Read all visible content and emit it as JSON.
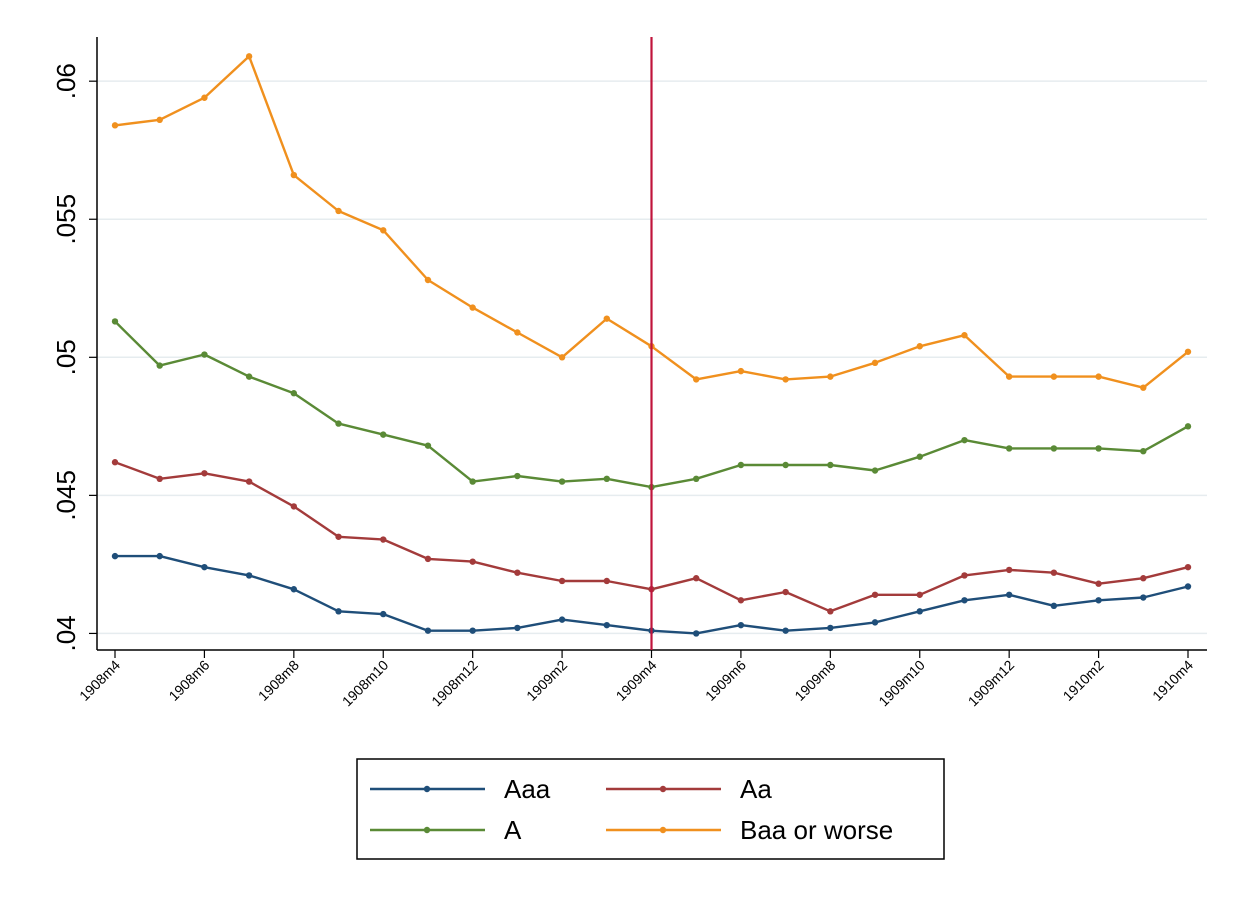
{
  "chart_data": {
    "type": "line",
    "title": "",
    "xlabel": "",
    "ylabel": "",
    "x": [
      "1908m4",
      "1908m5",
      "1908m6",
      "1908m7",
      "1908m8",
      "1908m9",
      "1908m10",
      "1908m11",
      "1908m12",
      "1909m1",
      "1909m2",
      "1909m3",
      "1909m4",
      "1909m5",
      "1909m6",
      "1909m7",
      "1909m8",
      "1909m9",
      "1909m10",
      "1909m11",
      "1909m12",
      "1910m1",
      "1910m2",
      "1910m3",
      "1910m4"
    ],
    "x_tick_labels": [
      "1908m4",
      "1908m6",
      "1908m8",
      "1908m10",
      "1908m12",
      "1909m2",
      "1909m4",
      "1909m6",
      "1909m8",
      "1909m10",
      "1909m12",
      "1910m2",
      "1910m4"
    ],
    "y_tick_values": [
      0.04,
      0.045,
      0.05,
      0.055,
      0.06
    ],
    "y_tick_labels": [
      ".04",
      ".045",
      ".05",
      ".055",
      ".06"
    ],
    "ylim": [
      0.0394,
      0.0616
    ],
    "grid": true,
    "vertical_reference_line": {
      "x": "1909m4",
      "color": "#c0143c"
    },
    "legend_position": "bottom",
    "series": [
      {
        "name": "Aaa",
        "color": "#1f4e79",
        "values": [
          0.0428,
          0.0428,
          0.0424,
          0.0421,
          0.0416,
          0.0408,
          0.0407,
          0.0401,
          0.0401,
          0.0402,
          0.0405,
          0.0403,
          0.0401,
          0.04,
          0.0403,
          0.0401,
          0.0402,
          0.0404,
          0.0408,
          0.0412,
          0.0414,
          0.041,
          0.0412,
          0.0413,
          0.0417
        ]
      },
      {
        "name": "Aa",
        "color": "#a33b3b",
        "values": [
          0.0462,
          0.0456,
          0.0458,
          0.0455,
          0.0446,
          0.0435,
          0.0434,
          0.0427,
          0.0426,
          0.0422,
          0.0419,
          0.0419,
          0.0416,
          0.042,
          0.0412,
          0.0415,
          0.0408,
          0.0414,
          0.0414,
          0.0421,
          0.0423,
          0.0422,
          0.0418,
          0.042,
          0.0424
        ]
      },
      {
        "name": "A",
        "color": "#5a8a36",
        "values": [
          0.0513,
          0.0497,
          0.0501,
          0.0493,
          0.0487,
          0.0476,
          0.0472,
          0.0468,
          0.0455,
          0.0457,
          0.0455,
          0.0456,
          0.0453,
          0.0456,
          0.0461,
          0.0461,
          0.0461,
          0.0459,
          0.0464,
          0.047,
          0.0467,
          0.0467,
          0.0467,
          0.0466,
          0.0475
        ]
      },
      {
        "name": "Baa or worse",
        "color": "#f0901e",
        "values": [
          0.0584,
          0.0586,
          0.0594,
          0.0609,
          0.0566,
          0.0553,
          0.0546,
          0.0528,
          0.0518,
          0.0509,
          0.05,
          0.0514,
          0.0504,
          0.0492,
          0.0495,
          0.0492,
          0.0493,
          0.0498,
          0.0504,
          0.0508,
          0.0493,
          0.0493,
          0.0493,
          0.0489,
          0.0502
        ]
      }
    ]
  }
}
